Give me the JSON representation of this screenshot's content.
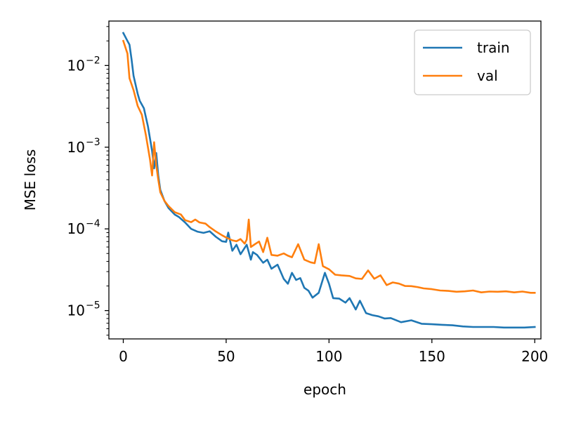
{
  "chart_data": {
    "type": "line",
    "xlabel": "epoch",
    "ylabel": "MSE loss",
    "xlim": [
      -7,
      203
    ],
    "ylim": [
      4.5e-06,
      0.035
    ],
    "yscale": "log",
    "xticks": [
      0,
      50,
      100,
      150,
      200
    ],
    "yticks": [
      {
        "value": 0.01,
        "base": "10",
        "exp": "−2"
      },
      {
        "value": 0.001,
        "base": "10",
        "exp": "−3"
      },
      {
        "value": 0.0001,
        "base": "10",
        "exp": "−4"
      },
      {
        "value": 1e-05,
        "base": "10",
        "exp": "−5"
      }
    ],
    "grid": false,
    "legend_position": "upper right",
    "series": [
      {
        "name": "train",
        "color": "#1f77b4",
        "points": [
          [
            0,
            0.025
          ],
          [
            2,
            0.02
          ],
          [
            3,
            0.018
          ],
          [
            4,
            0.012
          ],
          [
            5,
            0.0075
          ],
          [
            7,
            0.0045
          ],
          [
            8,
            0.0037
          ],
          [
            10,
            0.003
          ],
          [
            12,
            0.0018
          ],
          [
            14,
            0.0009
          ],
          [
            15,
            0.00055
          ],
          [
            16,
            0.00085
          ],
          [
            17,
            0.00045
          ],
          [
            18,
            0.0003
          ],
          [
            20,
            0.00022
          ],
          [
            22,
            0.00018
          ],
          [
            25,
            0.00015
          ],
          [
            27,
            0.00014
          ],
          [
            30,
            0.00012
          ],
          [
            33,
            0.0001
          ],
          [
            36,
            9.26e-05
          ],
          [
            39,
            8.93e-05
          ],
          [
            42,
            9.35e-05
          ],
          [
            45,
            8e-05
          ],
          [
            48,
            7.06e-05
          ],
          [
            50,
            6.94e-05
          ],
          [
            51,
            9e-05
          ],
          [
            53,
            5.4e-05
          ],
          [
            55,
            6.4e-05
          ],
          [
            57,
            4.9e-05
          ],
          [
            60,
            6.4e-05
          ],
          [
            62,
            4.2e-05
          ],
          [
            63,
            5.2e-05
          ],
          [
            65,
            4.8e-05
          ],
          [
            68,
            3.85e-05
          ],
          [
            70,
            4.2e-05
          ],
          [
            72,
            3.25e-05
          ],
          [
            75,
            3.65e-05
          ],
          [
            78,
            2.44e-05
          ],
          [
            80,
            2.13e-05
          ],
          [
            82,
            2.9e-05
          ],
          [
            84,
            2.37e-05
          ],
          [
            86,
            2.5e-05
          ],
          [
            88,
            1.9e-05
          ],
          [
            90,
            1.75e-05
          ],
          [
            92,
            1.44e-05
          ],
          [
            95,
            1.65e-05
          ],
          [
            98,
            2.9e-05
          ],
          [
            100,
            2.12e-05
          ],
          [
            102,
            1.42e-05
          ],
          [
            105,
            1.4e-05
          ],
          [
            108,
            1.25e-05
          ],
          [
            110,
            1.42e-05
          ],
          [
            113,
            1.03e-05
          ],
          [
            115,
            1.32e-05
          ],
          [
            118,
            9.3e-06
          ],
          [
            121,
            8.8e-06
          ],
          [
            124,
            8.5e-06
          ],
          [
            127,
            8e-06
          ],
          [
            130,
            8.1e-06
          ],
          [
            135,
            7.2e-06
          ],
          [
            140,
            7.6e-06
          ],
          [
            145,
            6.9e-06
          ],
          [
            150,
            6.8e-06
          ],
          [
            155,
            6.7e-06
          ],
          [
            160,
            6.6e-06
          ],
          [
            165,
            6.4e-06
          ],
          [
            170,
            6.3e-06
          ],
          [
            175,
            6.3e-06
          ],
          [
            180,
            6.3e-06
          ],
          [
            185,
            6.2e-06
          ],
          [
            190,
            6.2e-06
          ],
          [
            195,
            6.2e-06
          ],
          [
            200,
            6.3e-06
          ]
        ]
      },
      {
        "name": "val",
        "color": "#ff7f0e",
        "points": [
          [
            0,
            0.02
          ],
          [
            2,
            0.014
          ],
          [
            3,
            0.007
          ],
          [
            5,
            0.005
          ],
          [
            7,
            0.0032
          ],
          [
            9,
            0.0025
          ],
          [
            11,
            0.0014
          ],
          [
            13,
            0.0007
          ],
          [
            14,
            0.00045
          ],
          [
            15,
            0.00115
          ],
          [
            16,
            0.0006
          ],
          [
            17,
            0.0004
          ],
          [
            18,
            0.00028
          ],
          [
            20,
            0.00022
          ],
          [
            22,
            0.00019
          ],
          [
            25,
            0.00016
          ],
          [
            28,
            0.00015
          ],
          [
            30,
            0.000128
          ],
          [
            33,
            0.000121
          ],
          [
            35,
            0.00013
          ],
          [
            37,
            0.00012
          ],
          [
            40,
            0.000116
          ],
          [
            42,
            0.000105
          ],
          [
            45,
            9.3e-05
          ],
          [
            48,
            8.35e-05
          ],
          [
            50,
            7.84e-05
          ],
          [
            53,
            7.25e-05
          ],
          [
            55,
            7.06e-05
          ],
          [
            57,
            7.5e-05
          ],
          [
            59,
            6.6e-05
          ],
          [
            60,
            7.4e-05
          ],
          [
            61,
            0.00013
          ],
          [
            62,
            6e-05
          ],
          [
            64,
            6.5e-05
          ],
          [
            66,
            7e-05
          ],
          [
            68,
            5.2e-05
          ],
          [
            70,
            7.8e-05
          ],
          [
            72,
            4.8e-05
          ],
          [
            75,
            4.7e-05
          ],
          [
            78,
            5e-05
          ],
          [
            80,
            4.7e-05
          ],
          [
            82,
            4.5e-05
          ],
          [
            85,
            6.5e-05
          ],
          [
            88,
            4.2e-05
          ],
          [
            91,
            3.9e-05
          ],
          [
            93,
            3.8e-05
          ],
          [
            95,
            6.5e-05
          ],
          [
            97,
            3.5e-05
          ],
          [
            100,
            3.2e-05
          ],
          [
            103,
            2.75e-05
          ],
          [
            106,
            2.7e-05
          ],
          [
            110,
            2.65e-05
          ],
          [
            113,
            2.48e-05
          ],
          [
            116,
            2.44e-05
          ],
          [
            119,
            3.1e-05
          ],
          [
            122,
            2.45e-05
          ],
          [
            125,
            2.7e-05
          ],
          [
            128,
            2.05e-05
          ],
          [
            131,
            2.21e-05
          ],
          [
            134,
            2.14e-05
          ],
          [
            137,
            2e-05
          ],
          [
            140,
            1.99e-05
          ],
          [
            143,
            1.94e-05
          ],
          [
            146,
            1.87e-05
          ],
          [
            150,
            1.83e-05
          ],
          [
            154,
            1.76e-05
          ],
          [
            158,
            1.74e-05
          ],
          [
            162,
            1.7e-05
          ],
          [
            166,
            1.72e-05
          ],
          [
            170,
            1.76e-05
          ],
          [
            174,
            1.67e-05
          ],
          [
            178,
            1.71e-05
          ],
          [
            182,
            1.7e-05
          ],
          [
            186,
            1.72e-05
          ],
          [
            190,
            1.67e-05
          ],
          [
            194,
            1.71e-05
          ],
          [
            198,
            1.65e-05
          ],
          [
            200,
            1.65e-05
          ]
        ]
      }
    ]
  }
}
